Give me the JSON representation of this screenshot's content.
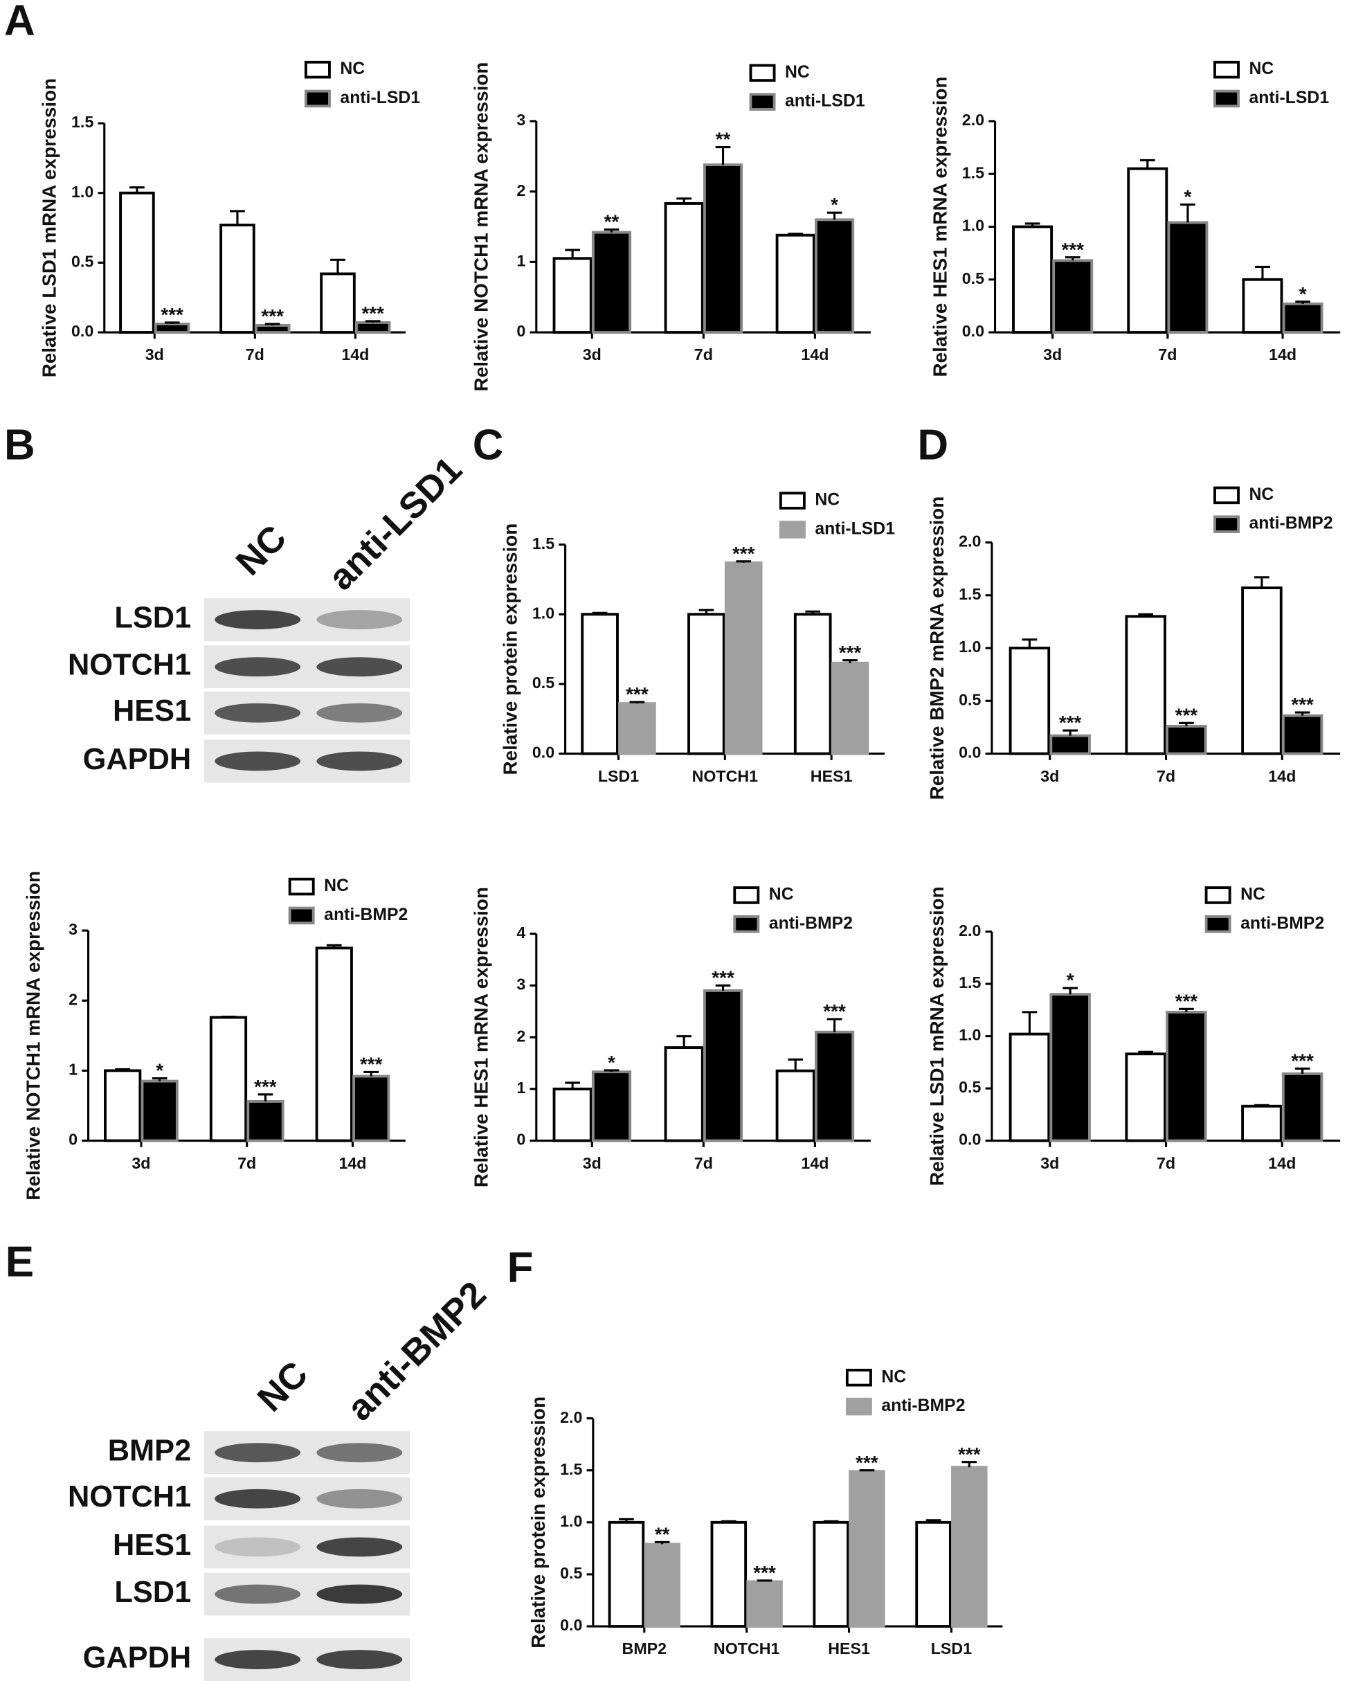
{
  "panels": [
    "A",
    "B",
    "C",
    "D",
    "E",
    "F"
  ],
  "chart_data": [
    {
      "type": "bar",
      "ylabel": "Relative LSD1 mRNA expression",
      "categories": [
        "3d",
        "7d",
        "14d"
      ],
      "ylim": [
        0,
        1.5
      ],
      "yticks": [
        {
          "value": 0,
          "label": "0.0"
        },
        0.5,
        {
          "value": 1,
          "label": "1.0"
        },
        1.5
      ],
      "series": [
        {
          "name": "NC",
          "color": "#ffffff",
          "edgecolor": "#000000",
          "values": [
            1.0,
            0.77,
            0.42
          ],
          "errors": [
            0.04,
            0.1,
            0.1
          ]
        },
        {
          "name": "anti-LSD1",
          "color": "#000000",
          "edgecolor": "#888888",
          "values": [
            0.06,
            0.05,
            0.07
          ],
          "errors": [
            0.01,
            0.01,
            0.01
          ],
          "significance": [
            "***",
            "***",
            "***"
          ]
        }
      ]
    },
    {
      "type": "bar",
      "ylabel": "Relative NOTCH1 mRNA expression",
      "categories": [
        "3d",
        "7d",
        "14d"
      ],
      "ylim": [
        0,
        3
      ],
      "yticks": [
        0,
        1,
        2,
        3
      ],
      "series": [
        {
          "name": "NC",
          "color": "#ffffff",
          "edgecolor": "#000000",
          "values": [
            1.05,
            1.83,
            1.38
          ],
          "errors": [
            0.12,
            0.07,
            0.02
          ]
        },
        {
          "name": "anti-LSD1",
          "color": "#000000",
          "edgecolor": "#888888",
          "values": [
            1.42,
            2.38,
            1.6
          ],
          "errors": [
            0.04,
            0.25,
            0.1
          ],
          "significance": [
            "**",
            "**",
            "*"
          ]
        }
      ]
    },
    {
      "type": "bar",
      "ylabel": "Relative HES1 mRNA expression",
      "categories": [
        "3d",
        "7d",
        "14d"
      ],
      "ylim": [
        0,
        2
      ],
      "yticks": [
        {
          "value": 0,
          "label": "0.0"
        },
        0.5,
        {
          "value": 1,
          "label": "1.0"
        },
        1.5,
        {
          "value": 2,
          "label": "2.0"
        }
      ],
      "series": [
        {
          "name": "NC",
          "color": "#ffffff",
          "edgecolor": "#000000",
          "values": [
            1.0,
            1.55,
            0.5
          ],
          "errors": [
            0.03,
            0.08,
            0.12
          ]
        },
        {
          "name": "anti-LSD1",
          "color": "#000000",
          "edgecolor": "#888888",
          "values": [
            0.68,
            1.04,
            0.27
          ],
          "errors": [
            0.03,
            0.17,
            0.02
          ],
          "significance": [
            "***",
            "*",
            "*"
          ]
        }
      ]
    },
    {
      "type": "bar",
      "ylabel": "Relative protein expression",
      "categories": [
        "LSD1",
        "NOTCH1",
        "HES1"
      ],
      "ylim": [
        0,
        1.5
      ],
      "yticks": [
        {
          "value": 0,
          "label": "0.0"
        },
        0.5,
        {
          "value": 1,
          "label": "1.0"
        },
        1.5
      ],
      "series": [
        {
          "name": "NC",
          "color": "#ffffff",
          "edgecolor": "#000000",
          "values": [
            1.0,
            1.0,
            1.0
          ],
          "errors": [
            0.01,
            0.03,
            0.02
          ]
        },
        {
          "name": "anti-LSD1",
          "color": "#a0a0a0",
          "edgecolor": "#a0a0a0",
          "values": [
            0.36,
            1.37,
            0.65
          ],
          "errors": [
            0.01,
            0.01,
            0.02
          ],
          "significance": [
            "***",
            "***",
            "***"
          ]
        }
      ]
    },
    {
      "type": "bar",
      "ylabel": "Relative BMP2 mRNA expression",
      "categories": [
        "3d",
        "7d",
        "14d"
      ],
      "ylim": [
        0,
        2
      ],
      "yticks": [
        {
          "value": 0,
          "label": "0.0"
        },
        0.5,
        {
          "value": 1,
          "label": "1.0"
        },
        1.5,
        {
          "value": 2,
          "label": "2.0"
        }
      ],
      "series": [
        {
          "name": "NC",
          "color": "#ffffff",
          "edgecolor": "#000000",
          "values": [
            1.0,
            1.3,
            1.57
          ],
          "errors": [
            0.08,
            0.02,
            0.1
          ]
        },
        {
          "name": "anti-BMP2",
          "color": "#000000",
          "edgecolor": "#888888",
          "values": [
            0.17,
            0.26,
            0.36
          ],
          "errors": [
            0.05,
            0.03,
            0.03
          ],
          "significance": [
            "***",
            "***",
            "***"
          ]
        }
      ]
    },
    {
      "type": "bar",
      "ylabel": "Relative NOTCH1 mRNA expression",
      "categories": [
        "3d",
        "7d",
        "14d"
      ],
      "ylim": [
        0,
        3
      ],
      "yticks": [
        0,
        1,
        2,
        3
      ],
      "series": [
        {
          "name": "NC",
          "color": "#ffffff",
          "edgecolor": "#000000",
          "values": [
            1.0,
            1.76,
            2.75
          ],
          "errors": [
            0.02,
            0.01,
            0.04
          ]
        },
        {
          "name": "anti-BMP2",
          "color": "#000000",
          "edgecolor": "#888888",
          "values": [
            0.85,
            0.56,
            0.92
          ],
          "errors": [
            0.04,
            0.1,
            0.06
          ],
          "significance": [
            "*",
            "***",
            "***"
          ]
        }
      ]
    },
    {
      "type": "bar",
      "ylabel": "Relative HES1 mRNA expression",
      "categories": [
        "3d",
        "7d",
        "14d"
      ],
      "ylim": [
        0,
        4
      ],
      "yticks": [
        0,
        1,
        2,
        3,
        4
      ],
      "series": [
        {
          "name": "NC",
          "color": "#ffffff",
          "edgecolor": "#000000",
          "values": [
            1.0,
            1.8,
            1.35
          ],
          "errors": [
            0.12,
            0.22,
            0.22
          ]
        },
        {
          "name": "anti-BMP2",
          "color": "#000000",
          "edgecolor": "#888888",
          "values": [
            1.33,
            2.9,
            2.1
          ],
          "errors": [
            0.03,
            0.1,
            0.25
          ],
          "significance": [
            "*",
            "***",
            "***"
          ]
        }
      ]
    },
    {
      "type": "bar",
      "ylabel": "Relative LSD1 mRNA expression",
      "categories": [
        "3d",
        "7d",
        "14d"
      ],
      "ylim": [
        0,
        2
      ],
      "yticks": [
        {
          "value": 0,
          "label": "0.0"
        },
        0.5,
        {
          "value": 1,
          "label": "1.0"
        },
        1.5,
        {
          "value": 2,
          "label": "2.0"
        }
      ],
      "series": [
        {
          "name": "NC",
          "color": "#ffffff",
          "edgecolor": "#000000",
          "values": [
            1.02,
            0.83,
            0.33
          ],
          "errors": [
            0.21,
            0.02,
            0.01
          ]
        },
        {
          "name": "anti-BMP2",
          "color": "#000000",
          "edgecolor": "#888888",
          "values": [
            1.4,
            1.23,
            0.64
          ],
          "errors": [
            0.06,
            0.03,
            0.05
          ],
          "significance": [
            "*",
            "***",
            "***"
          ]
        }
      ]
    },
    {
      "type": "bar",
      "ylabel": "Relative protein expression",
      "categories": [
        "BMP2",
        "NOTCH1",
        "HES1",
        "LSD1"
      ],
      "ylim": [
        0,
        2
      ],
      "yticks": [
        {
          "value": 0,
          "label": "0.0"
        },
        0.5,
        {
          "value": 1,
          "label": "1.0"
        },
        1.5,
        {
          "value": 2,
          "label": "2.0"
        }
      ],
      "series": [
        {
          "name": "NC",
          "color": "#ffffff",
          "edgecolor": "#000000",
          "values": [
            1.0,
            1.0,
            1.0,
            1.0
          ],
          "errors": [
            0.03,
            0.01,
            0.01,
            0.02
          ]
        },
        {
          "name": "anti-BMP2",
          "color": "#a0a0a0",
          "edgecolor": "#a0a0a0",
          "values": [
            0.79,
            0.43,
            1.49,
            1.53
          ],
          "errors": [
            0.02,
            0.01,
            0.01,
            0.05
          ],
          "significance": [
            "**",
            "***",
            "***",
            "***"
          ]
        }
      ]
    }
  ],
  "blots": [
    {
      "columns": [
        "NC",
        "anti-LSD1"
      ],
      "rows": [
        "LSD1",
        "NOTCH1",
        "HES1",
        "GAPDH"
      ]
    },
    {
      "columns": [
        "NC",
        "anti-BMP2"
      ],
      "rows": [
        "BMP2",
        "NOTCH1",
        "HES1",
        "LSD1",
        "GAPDH"
      ]
    }
  ]
}
